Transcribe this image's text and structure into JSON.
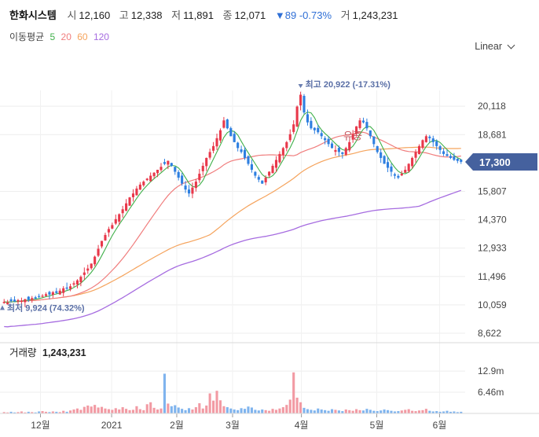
{
  "header": {
    "name": "한화시스템",
    "open_label": "시",
    "open": "12,160",
    "high_label": "고",
    "high": "12,338",
    "low_label": "저",
    "low": "11,891",
    "close_label": "종",
    "close": "12,071",
    "change": "▼89 -0.73%",
    "volume_label": "거",
    "volume": "1,243,231"
  },
  "ma_legend": {
    "title": "이동평균",
    "periods": [
      "5",
      "20",
      "60",
      "120"
    ]
  },
  "scale_mode": "Linear",
  "colors": {
    "up": "#e8384a",
    "down": "#2d7fe0",
    "ma5": "#3fb04a",
    "ma20": "#f07d7d",
    "ma60": "#f5a35c",
    "ma120": "#a66ce0",
    "price_tag": "#45619e",
    "volume_up": "#f29aa3",
    "volume_down": "#7fb4ee"
  },
  "chart_data": {
    "type": "candlestick",
    "y_ticks": [
      "20,118",
      "18,681",
      "17,300",
      "15,807",
      "14,370",
      "12,933",
      "11,496",
      "10,059",
      "8,622"
    ],
    "last_price": "17,300",
    "x_ticks": [
      "12월",
      "2021",
      "2월",
      "3월",
      "4월",
      "5월",
      "6월"
    ],
    "max_annotation": {
      "label": "최고",
      "value": "20,922",
      "pct": "(-17.31%)"
    },
    "min_annotation": {
      "label": "최저",
      "value": "9,924",
      "pct": "(74.32%)"
    },
    "event_label": "유증",
    "volume_title": "거래량",
    "volume_value": "1,243,231",
    "volume_ticks": [
      "12.9m",
      "6.46m"
    ],
    "price_range": [
      8622,
      20920
    ],
    "volume_max": 15800000,
    "candles_note": "daily OHLC approximated from chart",
    "closes": [
      10210,
      10180,
      10250,
      10230,
      10300,
      10280,
      10350,
      10320,
      10400,
      10380,
      10460,
      10520,
      10600,
      10580,
      10700,
      10660,
      10780,
      10900,
      10880,
      11000,
      11150,
      11300,
      11480,
      11700,
      11900,
      12150,
      12500,
      12900,
      13300,
      13600,
      13900,
      14100,
      14400,
      14650,
      14900,
      15200,
      15500,
      15700,
      15950,
      16150,
      16300,
      16450,
      16600,
      16750,
      16900,
      17050,
      17200,
      17350,
      17100,
      16800,
      16500,
      16200,
      15900,
      15700,
      16000,
      16300,
      16700,
      17100,
      17500,
      17800,
      18100,
      18500,
      18900,
      19400,
      19000,
      18600,
      18300,
      18000,
      17800,
      17500,
      17200,
      16900,
      16600,
      16400,
      16200,
      16500,
      16800,
      17100,
      17400,
      17700,
      18000,
      18300,
      18700,
      19200,
      20100,
      20700,
      19800,
      19300,
      19000,
      18900,
      18800,
      18600,
      18400,
      18200,
      18000,
      17900,
      17800,
      17700,
      18000,
      18300,
      18700,
      19100,
      19400,
      19300,
      19000,
      18600,
      18200,
      17800,
      17500,
      17200,
      17000,
      16800,
      16600,
      16500,
      16700,
      16900,
      17200,
      17500,
      17800,
      18100,
      18400,
      18600,
      18500,
      18300,
      18100,
      17900,
      17700,
      17600,
      17500,
      17400,
      17350,
      17300
    ],
    "volumes": [
      0.4,
      0.3,
      0.5,
      0.3,
      0.4,
      0.6,
      0.3,
      0.5,
      0.4,
      0.3,
      0.6,
      0.7,
      0.5,
      0.4,
      0.6,
      0.5,
      0.4,
      0.8,
      0.5,
      0.9,
      1.2,
      1.5,
      1.1,
      2.0,
      2.4,
      2.1,
      2.6,
      1.8,
      2.0,
      1.5,
      1.3,
      1.1,
      1.6,
      1.2,
      1.9,
      1.4,
      1.0,
      1.1,
      2.2,
      1.3,
      1.0,
      2.8,
      3.4,
      1.7,
      1.2,
      1.5,
      12.1,
      3.0,
      2.2,
      2.5,
      1.8,
      1.4,
      1.0,
      1.6,
      1.2,
      1.9,
      3.1,
      1.5,
      2.4,
      6.1,
      3.9,
      6.9,
      4.0,
      2.2,
      1.9,
      1.5,
      1.2,
      1.0,
      1.6,
      1.4,
      2.1,
      1.8,
      1.1,
      0.9,
      1.2,
      1.0,
      0.8,
      1.4,
      1.1,
      1.5,
      1.9,
      2.6,
      4.2,
      12.5,
      4.8,
      3.4,
      1.7,
      1.3,
      1.1,
      0.9,
      1.5,
      1.2,
      1.0,
      0.8,
      1.3,
      1.1,
      0.9,
      0.7,
      1.2,
      1.0,
      0.8,
      1.3,
      1.0,
      0.9,
      1.4,
      1.1,
      0.8,
      0.7,
      0.9,
      1.2,
      1.0,
      0.8,
      0.6,
      0.7,
      0.9,
      1.1,
      1.3,
      0.8,
      0.7,
      0.9,
      1.0,
      1.4,
      0.8,
      0.6,
      0.7,
      0.5,
      0.6,
      0.8,
      0.5,
      0.6,
      0.4,
      0.5
    ]
  }
}
